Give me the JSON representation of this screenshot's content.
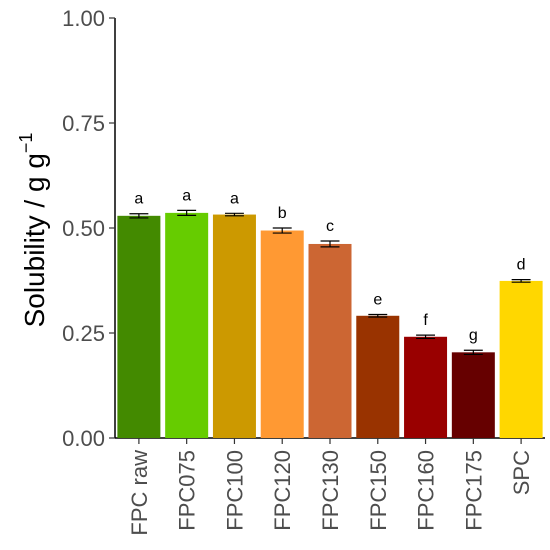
{
  "chart_data": {
    "type": "bar",
    "title": "",
    "xlabel": "",
    "ylabel": "Solubility / g g",
    "ylabel_superscript": "−1",
    "ylim": [
      0,
      1.0
    ],
    "yticks": [
      0.0,
      0.25,
      0.5,
      0.75,
      1.0
    ],
    "ytick_labels": [
      "0.00",
      "0.25",
      "0.50",
      "0.75",
      "1.00"
    ],
    "grid": false,
    "legend": "none",
    "categories": [
      "FPC raw",
      "FPC075",
      "FPC100",
      "FPC120",
      "FPC130",
      "FPC150",
      "FPC160",
      "FPC175",
      "SPC"
    ],
    "values": [
      0.529,
      0.536,
      0.532,
      0.494,
      0.462,
      0.291,
      0.241,
      0.204,
      0.374
    ],
    "errors": [
      0.005,
      0.006,
      0.003,
      0.006,
      0.007,
      0.003,
      0.004,
      0.005,
      0.003
    ],
    "significance_letters": [
      "a",
      "a",
      "a",
      "b",
      "c",
      "e",
      "f",
      "g",
      "d"
    ],
    "colors": [
      "#438a00",
      "#66cc00",
      "#cc9900",
      "#ff9933",
      "#cc6633",
      "#993300",
      "#990000",
      "#660000",
      "#ffd700"
    ]
  }
}
